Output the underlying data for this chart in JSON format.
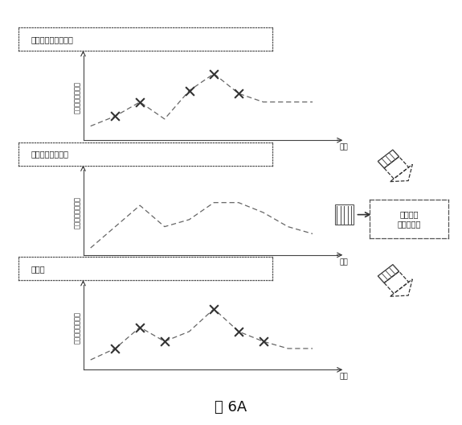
{
  "title": "図 6A",
  "panel1_label": "先行するコマンド：",
  "panel2_label": "新しいコマンド：",
  "panel3_label": "結果：",
  "ylabel": "アクチュエータ値",
  "xlabel": "時間",
  "merge_label": "タイプ：\n「マージ」",
  "panel1_x_data": [
    0,
    1,
    2,
    3,
    4,
    5,
    6,
    7,
    8,
    9
  ],
  "panel1_y_data": [
    1.5,
    2.2,
    3.2,
    2.0,
    4.0,
    5.2,
    3.8,
    3.2,
    3.2,
    3.2
  ],
  "panel1_x_marks": [
    1,
    2,
    4,
    5,
    6
  ],
  "panel1_y_marks": [
    2.2,
    3.2,
    4.0,
    5.2,
    3.8
  ],
  "panel2_x_data": [
    0,
    1,
    2,
    3,
    4,
    5,
    6,
    7,
    8,
    9
  ],
  "panel2_y_data": [
    1.0,
    2.5,
    4.0,
    2.5,
    3.0,
    4.2,
    4.2,
    3.5,
    2.5,
    2.0
  ],
  "panel3_x_data": [
    0,
    1,
    2,
    3,
    4,
    5,
    6,
    7,
    8,
    9
  ],
  "panel3_y_data": [
    1.2,
    2.0,
    3.5,
    2.5,
    3.2,
    4.8,
    3.2,
    2.5,
    2.0,
    2.0
  ],
  "panel3_x_marks": [
    1,
    2,
    3,
    5,
    6,
    7
  ],
  "panel3_y_marks": [
    2.0,
    3.5,
    2.5,
    4.8,
    3.2,
    2.5
  ],
  "line_color": "#666666",
  "mark_color": "#333333",
  "bg_color": "#ffffff"
}
